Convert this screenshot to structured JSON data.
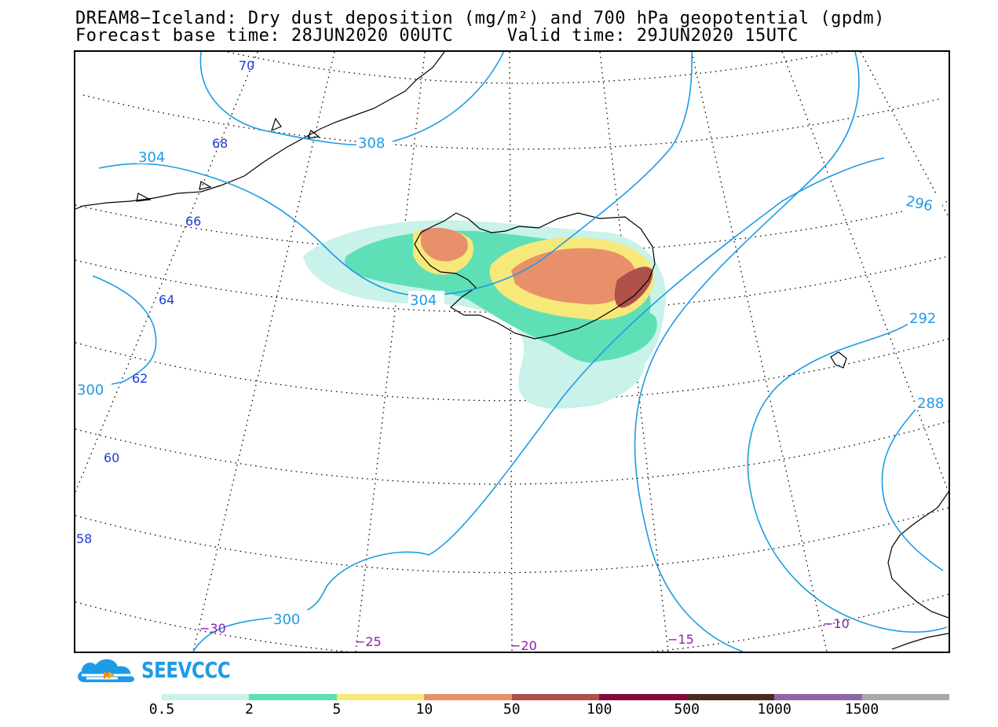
{
  "header": {
    "title_line_1": "DREAM8−Iceland: Dry dust deposition (mg/m²) and 700 hPa geopotential (gpdm)",
    "title_line_2": "Forecast base time: 28JUN2020 00UTC     Valid time: 29JUN2020 15UTC"
  },
  "map": {
    "latitude_labels": [
      "70",
      "68",
      "66",
      "64",
      "62",
      "60",
      "58"
    ],
    "longitude_labels": [
      "−30",
      "−25",
      "−20",
      "−15",
      "−10"
    ],
    "contour_labels": [
      "308",
      "304",
      "304",
      "300",
      "300",
      "296",
      "292",
      "288"
    ],
    "colors": {
      "contour": "#1e9be6",
      "latitude_label": "#1a3bd6",
      "longitude_label": "#8a1fb5",
      "coastline": "#000000",
      "graticule": "#000000"
    }
  },
  "logo": {
    "text": "SEEVCCC",
    "icon": "cloud-logo-icon"
  },
  "legend": {
    "levels": [
      "0.5",
      "2",
      "5",
      "10",
      "50",
      "100",
      "500",
      "1000",
      "1500"
    ],
    "colors": [
      "#c8f2ea",
      "#5fdfb6",
      "#f7e87a",
      "#e8906a",
      "#b0504a",
      "#820a3a",
      "#4a2a1e",
      "#8e66a4",
      "#a9a9a9"
    ]
  }
}
